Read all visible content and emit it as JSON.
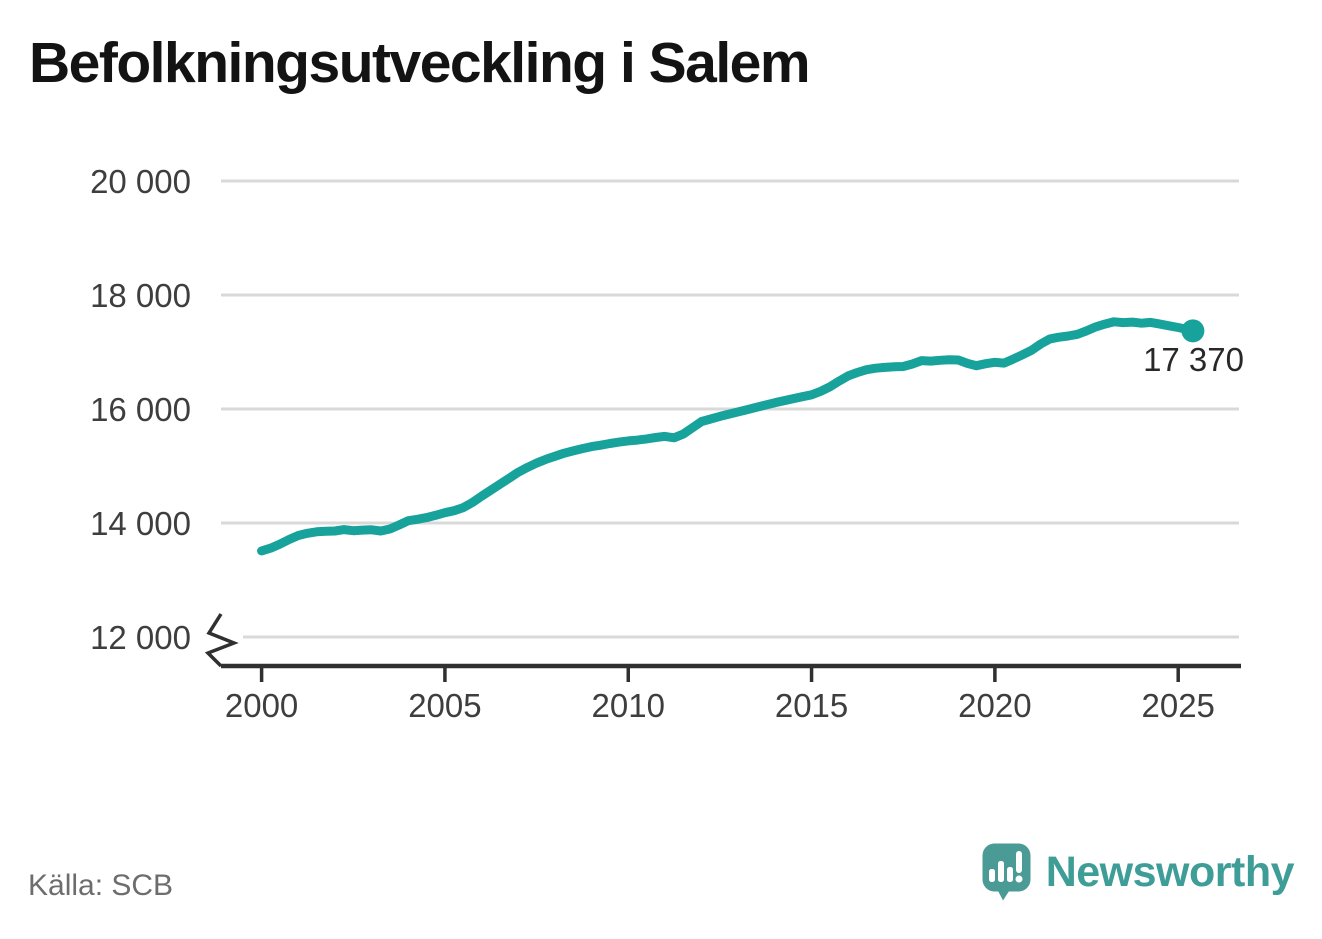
{
  "title": "Befolkningsutveckling i Salem",
  "source": {
    "text": "Källa: SCB"
  },
  "branding": {
    "wordmark": "Newsworthy",
    "logo_icon": "speech-bubble-with-bar-chart-and-exclamation",
    "color": "#4a9b95",
    "wordmark_color": "#3f9d98"
  },
  "chart_data": {
    "type": "line",
    "title": "Befolkningsutveckling i Salem",
    "xlabel": "",
    "ylabel": "",
    "grid": "horizontal",
    "axis_break_at_y_bottom": true,
    "legend": "none",
    "xlim": [
      1999.4,
      2027.1
    ],
    "ylim_shown_ticks": [
      12000,
      20000
    ],
    "yticks": [
      {
        "value": 20000,
        "label": "20 000"
      },
      {
        "value": 18000,
        "label": "18 000"
      },
      {
        "value": 16000,
        "label": "16 000"
      },
      {
        "value": 14000,
        "label": "14 000"
      },
      {
        "value": 12000,
        "label": "12 000"
      }
    ],
    "xticks": [
      {
        "value": 2000,
        "label": "2000"
      },
      {
        "value": 2005,
        "label": "2005"
      },
      {
        "value": 2010,
        "label": "2010"
      },
      {
        "value": 2015,
        "label": "2015"
      },
      {
        "value": 2020,
        "label": "2020"
      },
      {
        "value": 2025,
        "label": "2025"
      }
    ],
    "end_label": "17 370",
    "end_value": 17370,
    "series": [
      {
        "name": "Befolkning i Salem",
        "color": "#17a29b",
        "points": [
          [
            2000.0,
            13510
          ],
          [
            2000.25,
            13560
          ],
          [
            2000.5,
            13630
          ],
          [
            2000.75,
            13710
          ],
          [
            2001.0,
            13780
          ],
          [
            2001.25,
            13820
          ],
          [
            2001.5,
            13845
          ],
          [
            2001.75,
            13855
          ],
          [
            2002.0,
            13860
          ],
          [
            2002.25,
            13885
          ],
          [
            2002.5,
            13865
          ],
          [
            2002.75,
            13875
          ],
          [
            2003.0,
            13880
          ],
          [
            2003.25,
            13860
          ],
          [
            2003.5,
            13895
          ],
          [
            2003.75,
            13965
          ],
          [
            2004.0,
            14040
          ],
          [
            2004.25,
            14065
          ],
          [
            2004.5,
            14095
          ],
          [
            2004.75,
            14135
          ],
          [
            2005.0,
            14180
          ],
          [
            2005.25,
            14215
          ],
          [
            2005.5,
            14270
          ],
          [
            2005.75,
            14360
          ],
          [
            2006.0,
            14470
          ],
          [
            2006.25,
            14575
          ],
          [
            2006.5,
            14680
          ],
          [
            2006.75,
            14785
          ],
          [
            2007.0,
            14890
          ],
          [
            2007.25,
            14975
          ],
          [
            2007.5,
            15050
          ],
          [
            2007.75,
            15115
          ],
          [
            2008.0,
            15170
          ],
          [
            2008.25,
            15225
          ],
          [
            2008.5,
            15265
          ],
          [
            2008.75,
            15305
          ],
          [
            2009.0,
            15340
          ],
          [
            2009.25,
            15365
          ],
          [
            2009.5,
            15395
          ],
          [
            2009.75,
            15420
          ],
          [
            2010.0,
            15440
          ],
          [
            2010.25,
            15455
          ],
          [
            2010.5,
            15475
          ],
          [
            2010.75,
            15500
          ],
          [
            2011.0,
            15520
          ],
          [
            2011.25,
            15495
          ],
          [
            2011.5,
            15560
          ],
          [
            2011.75,
            15670
          ],
          [
            2012.0,
            15780
          ],
          [
            2012.25,
            15825
          ],
          [
            2012.5,
            15870
          ],
          [
            2012.75,
            15910
          ],
          [
            2013.0,
            15950
          ],
          [
            2013.25,
            15990
          ],
          [
            2013.5,
            16030
          ],
          [
            2013.75,
            16070
          ],
          [
            2014.0,
            16110
          ],
          [
            2014.25,
            16145
          ],
          [
            2014.5,
            16180
          ],
          [
            2014.75,
            16215
          ],
          [
            2015.0,
            16250
          ],
          [
            2015.25,
            16310
          ],
          [
            2015.5,
            16390
          ],
          [
            2015.75,
            16490
          ],
          [
            2016.0,
            16580
          ],
          [
            2016.25,
            16640
          ],
          [
            2016.5,
            16690
          ],
          [
            2016.75,
            16715
          ],
          [
            2017.0,
            16730
          ],
          [
            2017.25,
            16740
          ],
          [
            2017.5,
            16745
          ],
          [
            2017.75,
            16790
          ],
          [
            2018.0,
            16850
          ],
          [
            2018.25,
            16840
          ],
          [
            2018.5,
            16855
          ],
          [
            2018.75,
            16865
          ],
          [
            2019.0,
            16860
          ],
          [
            2019.25,
            16800
          ],
          [
            2019.5,
            16760
          ],
          [
            2019.75,
            16795
          ],
          [
            2020.0,
            16820
          ],
          [
            2020.25,
            16805
          ],
          [
            2020.5,
            16875
          ],
          [
            2020.75,
            16950
          ],
          [
            2021.0,
            17030
          ],
          [
            2021.25,
            17140
          ],
          [
            2021.5,
            17230
          ],
          [
            2021.75,
            17260
          ],
          [
            2022.0,
            17280
          ],
          [
            2022.25,
            17310
          ],
          [
            2022.5,
            17370
          ],
          [
            2022.75,
            17440
          ],
          [
            2023.0,
            17490
          ],
          [
            2023.25,
            17530
          ],
          [
            2023.5,
            17515
          ],
          [
            2023.75,
            17525
          ],
          [
            2024.0,
            17505
          ],
          [
            2024.25,
            17520
          ],
          [
            2024.5,
            17490
          ],
          [
            2024.75,
            17460
          ],
          [
            2025.0,
            17430
          ],
          [
            2025.25,
            17395
          ],
          [
            2025.4,
            17370
          ]
        ]
      }
    ]
  }
}
